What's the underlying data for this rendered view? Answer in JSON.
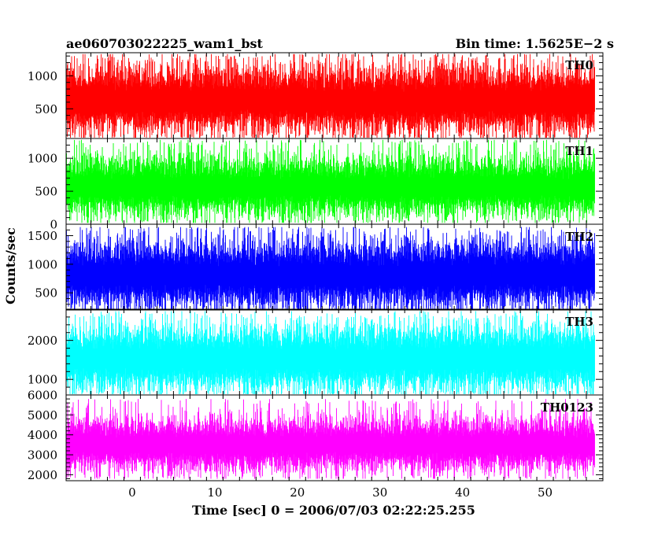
{
  "header": {
    "title": "ae060703022225_wam1_bst",
    "bin_time": "Bin time: 1.5625E−2 s"
  },
  "chart_data": {
    "type": "line",
    "xlabel": "Time [sec] 0 = 2006/07/03 02:22:25.255",
    "ylabel": "Counts/sec",
    "xlim": [
      -8,
      57
    ],
    "x_ticks": [
      0,
      10,
      20,
      30,
      40,
      50
    ],
    "x_range_data": [
      -8,
      56
    ],
    "panels": [
      {
        "name": "TH0",
        "color": "#ff0000",
        "ylim": [
          50,
          1350
        ],
        "y_ticks": [
          500,
          1000
        ],
        "mean": 640,
        "low": 160,
        "high": 1330,
        "noise": 190,
        "bottom_min": 50
      },
      {
        "name": "TH1",
        "color": "#00ff00",
        "ylim": [
          0,
          1300
        ],
        "y_ticks": [
          0,
          500,
          1000
        ],
        "mean": 580,
        "low": 90,
        "high": 1280,
        "noise": 170,
        "bottom_min": 20
      },
      {
        "name": "TH2",
        "color": "#0000ff",
        "ylim": [
          200,
          1700
        ],
        "y_ticks": [
          500,
          1000,
          1500
        ],
        "mean": 830,
        "low": 300,
        "high": 1650,
        "noise": 220,
        "bottom_min": 210
      },
      {
        "name": "TH3",
        "color": "#00ffff",
        "ylim": [
          600,
          2800
        ],
        "y_ticks": [
          1000,
          2000
        ],
        "mean": 1550,
        "low": 700,
        "high": 2750,
        "noise": 320,
        "bottom_min": 620
      },
      {
        "name": "TH0123",
        "color": "#ff00ff",
        "ylim": [
          1700,
          6000
        ],
        "y_ticks": [
          2000,
          3000,
          4000,
          5000,
          6000
        ],
        "mean": 3550,
        "low": 2300,
        "high": 5800,
        "noise": 500,
        "bottom_min": 1800
      }
    ]
  }
}
